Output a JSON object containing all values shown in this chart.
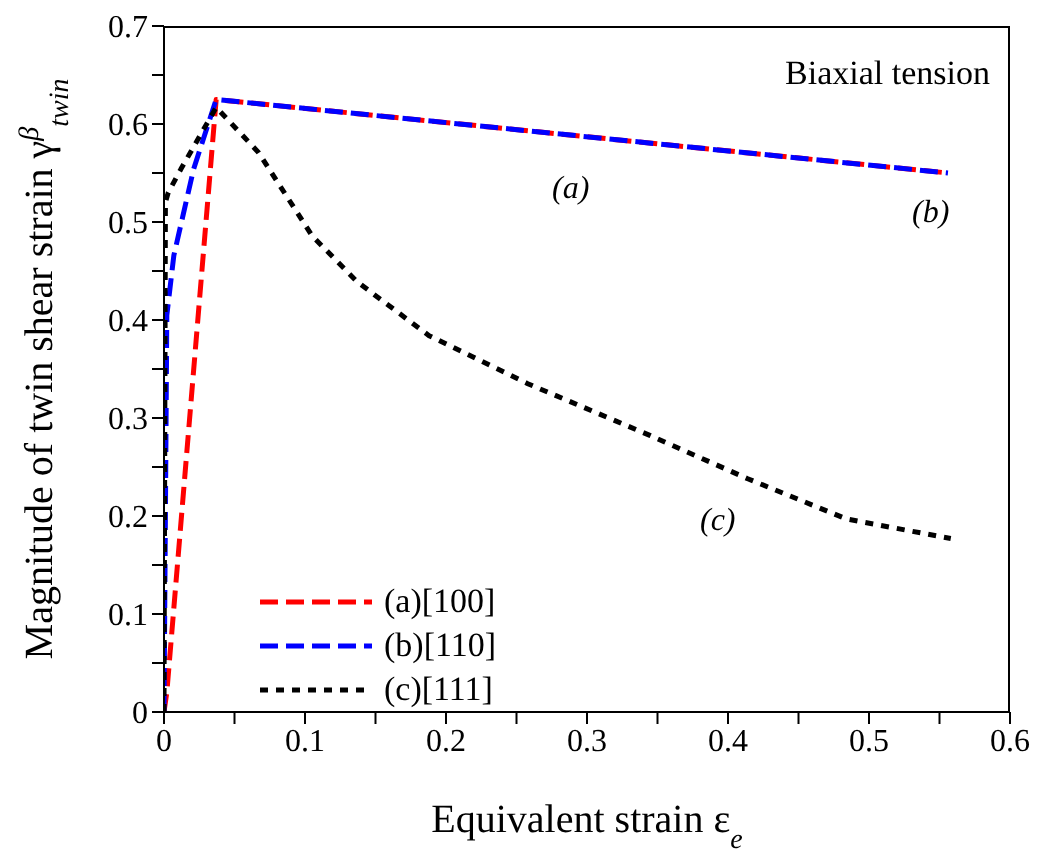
{
  "chart_data": {
    "type": "line",
    "xlabel": "Equivalent strain ε$_{e}$",
    "ylabel": "Magnitude of twin shear strain γ$^{β}$$_{twin}$",
    "series": [
      {
        "name": "(a)[100]",
        "color": "#ff0000",
        "line_style": "dashed",
        "x": [
          0,
          0.002,
          0.037,
          0.556
        ],
        "values": [
          0,
          0.02,
          0.625,
          0.55
        ]
      },
      {
        "name": "(b)[110]",
        "color": "#0000ff",
        "line_style": "dashed",
        "x": [
          0,
          0.001,
          0.002,
          0.007,
          0.021,
          0.037,
          0.556
        ],
        "values": [
          0,
          0.2,
          0.405,
          0.466,
          0.554,
          0.625,
          0.55
        ]
      },
      {
        "name": "(c)[111]",
        "color": "#000000",
        "line_style": "dotted",
        "x": [
          0,
          0.001,
          0.003,
          0.012,
          0.037,
          0.067,
          0.105,
          0.137,
          0.188,
          0.258,
          0.345,
          0.414,
          0.484,
          0.558
        ],
        "values": [
          0,
          0.52,
          0.53,
          0.554,
          0.617,
          0.571,
          0.486,
          0.439,
          0.384,
          0.335,
          0.282,
          0.238,
          0.197,
          0.177
        ]
      }
    ],
    "xlim": [
      0,
      0.6
    ],
    "xticks": [
      0,
      {
        "value": 0.05,
        "label": null
      },
      0.1,
      {
        "value": 0.15,
        "label": null
      },
      0.2,
      {
        "value": 0.25,
        "label": null
      },
      0.3,
      {
        "value": 0.35,
        "label": null
      },
      0.4,
      {
        "value": 0.45,
        "label": null
      },
      0.5,
      {
        "value": 0.55,
        "label": null
      },
      0.6
    ],
    "ylim": [
      0,
      0.7
    ],
    "yticks": [
      0,
      {
        "value": 0.05,
        "label": null
      },
      0.1,
      {
        "value": 0.15,
        "label": null
      },
      0.2,
      {
        "value": 0.25,
        "label": null
      },
      0.3,
      {
        "value": 0.35,
        "label": null
      },
      0.4,
      {
        "value": 0.45,
        "label": null
      },
      0.5,
      {
        "value": 0.55,
        "label": null
      },
      0.6,
      {
        "value": 0.65,
        "label": null
      },
      0.7
    ],
    "grid": false,
    "legend": "bottom left",
    "annotations": [
      "Biaxial tension",
      "(a)",
      "(b)",
      "(c)"
    ]
  }
}
